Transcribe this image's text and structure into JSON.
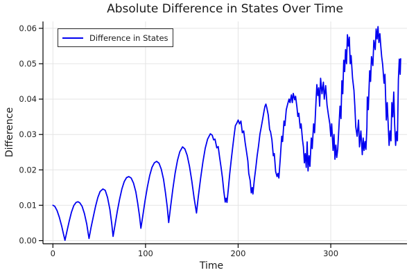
{
  "title": "Absolute Difference in States Over Time",
  "colors": {
    "line": "#0000f0",
    "grid": "#e4e4e4",
    "axis": "#000000",
    "tick_text": "#202020",
    "title_text": "#1a1a1a",
    "background": "#ffffff",
    "legend_border": "#2b2b2b"
  },
  "chart_data": {
    "type": "line",
    "title": "Absolute Difference in States Over Time",
    "xlabel": "Time",
    "ylabel": "Difference",
    "xlim": [
      -10.7,
      382.3
    ],
    "ylim": [
      -0.00088,
      0.06194
    ],
    "x_ticks": [
      0,
      100,
      200,
      300
    ],
    "x_tick_labels": [
      "0",
      "100",
      "200",
      "300"
    ],
    "y_ticks": [
      0.0,
      0.01,
      0.02,
      0.03,
      0.04,
      0.05,
      0.06
    ],
    "y_tick_labels": [
      "0.00",
      "0.01",
      "0.02",
      "0.03",
      "0.04",
      "0.05",
      "0.06"
    ],
    "grid": true,
    "legend_position": "top-left",
    "series": [
      {
        "name": "Difference in States",
        "color": "#0000f0",
        "points": [
          [
            0,
            0.01
          ],
          [
            2,
            0.0097
          ],
          [
            4.5,
            0.0085
          ],
          [
            7,
            0.0066
          ],
          [
            9.5,
            0.0041
          ],
          [
            11.3,
            0.002
          ],
          [
            13,
            0.0001
          ],
          [
            15,
            0.0024
          ],
          [
            17.5,
            0.0054
          ],
          [
            20,
            0.008
          ],
          [
            22.5,
            0.0099
          ],
          [
            25,
            0.0108
          ],
          [
            27,
            0.011
          ],
          [
            29,
            0.0107
          ],
          [
            31.5,
            0.0097
          ],
          [
            34,
            0.0077
          ],
          [
            36.5,
            0.0047
          ],
          [
            38,
            0.0022
          ],
          [
            39,
            0.0006
          ],
          [
            41,
            0.0035
          ],
          [
            43.5,
            0.0066
          ],
          [
            46,
            0.0096
          ],
          [
            48.5,
            0.0122
          ],
          [
            51,
            0.0139
          ],
          [
            54,
            0.0146
          ],
          [
            56.5,
            0.0142
          ],
          [
            59,
            0.0122
          ],
          [
            61.5,
            0.0088
          ],
          [
            63.5,
            0.0049
          ],
          [
            65,
            0.0012
          ],
          [
            67,
            0.0043
          ],
          [
            69.5,
            0.0082
          ],
          [
            72,
            0.0117
          ],
          [
            74.5,
            0.0146
          ],
          [
            77,
            0.0167
          ],
          [
            79.5,
            0.0178
          ],
          [
            82,
            0.0181
          ],
          [
            84.5,
            0.0177
          ],
          [
            87,
            0.0163
          ],
          [
            89.5,
            0.0138
          ],
          [
            91.5,
            0.0107
          ],
          [
            93.5,
            0.007
          ],
          [
            95,
            0.0035
          ],
          [
            97,
            0.0069
          ],
          [
            99.5,
            0.0113
          ],
          [
            102,
            0.0152
          ],
          [
            104.5,
            0.0184
          ],
          [
            107,
            0.0207
          ],
          [
            109.5,
            0.022
          ],
          [
            112,
            0.0224
          ],
          [
            114.5,
            0.0219
          ],
          [
            117,
            0.0202
          ],
          [
            119.5,
            0.0173
          ],
          [
            121.5,
            0.0136
          ],
          [
            123.5,
            0.0094
          ],
          [
            125,
            0.0051
          ],
          [
            127,
            0.0095
          ],
          [
            129.5,
            0.0146
          ],
          [
            132,
            0.0191
          ],
          [
            134.5,
            0.0227
          ],
          [
            137,
            0.0251
          ],
          [
            140,
            0.0265
          ],
          [
            142.5,
            0.0259
          ],
          [
            145,
            0.0241
          ],
          [
            147.5,
            0.021
          ],
          [
            150,
            0.0168
          ],
          [
            152.5,
            0.012
          ],
          [
            155,
            0.0078
          ],
          [
            157,
            0.0124
          ],
          [
            159.5,
            0.0177
          ],
          [
            162,
            0.0223
          ],
          [
            164.5,
            0.0261
          ],
          [
            167,
            0.0287
          ],
          [
            170,
            0.0302
          ],
          [
            172,
            0.0298
          ],
          [
            173.5,
            0.0285
          ],
          [
            175,
            0.0287
          ],
          [
            177,
            0.0262
          ],
          [
            178.5,
            0.0266
          ],
          [
            180,
            0.0235
          ],
          [
            181.5,
            0.0208
          ],
          [
            183,
            0.0178
          ],
          [
            184.5,
            0.014
          ],
          [
            186,
            0.0109
          ],
          [
            187,
            0.012
          ],
          [
            188,
            0.0108
          ],
          [
            189.5,
            0.0148
          ],
          [
            191,
            0.019
          ],
          [
            192.5,
            0.0228
          ],
          [
            194,
            0.0262
          ],
          [
            195.5,
            0.0295
          ],
          [
            197,
            0.0325
          ],
          [
            198.5,
            0.0332
          ],
          [
            200,
            0.0341
          ],
          [
            201.5,
            0.033
          ],
          [
            203,
            0.0338
          ],
          [
            204.5,
            0.0305
          ],
          [
            206,
            0.031
          ],
          [
            207.5,
            0.0278
          ],
          [
            209,
            0.0252
          ],
          [
            210.5,
            0.0225
          ],
          [
            211.5,
            0.019
          ],
          [
            213,
            0.017
          ],
          [
            214.2,
            0.0135
          ],
          [
            215.2,
            0.015
          ],
          [
            216,
            0.0132
          ],
          [
            217.5,
            0.0172
          ],
          [
            219,
            0.0205
          ],
          [
            220.5,
            0.024
          ],
          [
            222,
            0.0268
          ],
          [
            223.5,
            0.0301
          ],
          [
            225,
            0.0322
          ],
          [
            226.5,
            0.0344
          ],
          [
            228,
            0.0367
          ],
          [
            229,
            0.038
          ],
          [
            230,
            0.0386
          ],
          [
            231,
            0.0375
          ],
          [
            232.5,
            0.0355
          ],
          [
            234,
            0.0314
          ],
          [
            235,
            0.0308
          ],
          [
            236.5,
            0.0285
          ],
          [
            238,
            0.024
          ],
          [
            239,
            0.0246
          ],
          [
            240.5,
            0.0195
          ],
          [
            242,
            0.0181
          ],
          [
            243,
            0.019
          ],
          [
            244,
            0.0177
          ],
          [
            245.5,
            0.0234
          ],
          [
            247,
            0.0295
          ],
          [
            248,
            0.028
          ],
          [
            249.5,
            0.0338
          ],
          [
            250.5,
            0.0325
          ],
          [
            252,
            0.037
          ],
          [
            253.5,
            0.0386
          ],
          [
            255,
            0.04
          ],
          [
            256,
            0.039
          ],
          [
            257.5,
            0.0412
          ],
          [
            258.5,
            0.039
          ],
          [
            259.5,
            0.0416
          ],
          [
            261,
            0.0398
          ],
          [
            262,
            0.0408
          ],
          [
            263.5,
            0.0377
          ],
          [
            264.5,
            0.0351
          ],
          [
            265.5,
            0.036
          ],
          [
            267,
            0.0318
          ],
          [
            268,
            0.033
          ],
          [
            269.5,
            0.0285
          ],
          [
            270.5,
            0.0265
          ],
          [
            271.5,
            0.022
          ],
          [
            272.5,
            0.0246
          ],
          [
            273.5,
            0.0207
          ],
          [
            274.5,
            0.0279
          ],
          [
            275.5,
            0.0197
          ],
          [
            276.5,
            0.024
          ],
          [
            277.5,
            0.021
          ],
          [
            279,
            0.029
          ],
          [
            280,
            0.026
          ],
          [
            281.5,
            0.033
          ],
          [
            282.5,
            0.0305
          ],
          [
            284,
            0.039
          ],
          [
            285,
            0.0441
          ],
          [
            286,
            0.041
          ],
          [
            287,
            0.0432
          ],
          [
            288,
            0.038
          ],
          [
            289,
            0.0459
          ],
          [
            290.5,
            0.0415
          ],
          [
            292,
            0.0448
          ],
          [
            293,
            0.04
          ],
          [
            294.5,
            0.0438
          ],
          [
            296,
            0.0383
          ],
          [
            297.5,
            0.0355
          ],
          [
            299,
            0.033
          ],
          [
            300,
            0.0295
          ],
          [
            301,
            0.033
          ],
          [
            302.5,
            0.0255
          ],
          [
            303.5,
            0.03
          ],
          [
            304.5,
            0.023
          ],
          [
            305.5,
            0.027
          ],
          [
            306.5,
            0.0235
          ],
          [
            307.5,
            0.0258
          ],
          [
            309,
            0.033
          ],
          [
            310,
            0.038
          ],
          [
            311,
            0.0345
          ],
          [
            312,
            0.0452
          ],
          [
            313,
            0.0415
          ],
          [
            314,
            0.051
          ],
          [
            315,
            0.0478
          ],
          [
            316,
            0.054
          ],
          [
            317,
            0.05
          ],
          [
            318,
            0.0582
          ],
          [
            319,
            0.055
          ],
          [
            320,
            0.0575
          ],
          [
            321,
            0.05
          ],
          [
            322,
            0.0523
          ],
          [
            323.5,
            0.0459
          ],
          [
            325,
            0.0425
          ],
          [
            326,
            0.038
          ],
          [
            327,
            0.0322
          ],
          [
            328.5,
            0.0295
          ],
          [
            330,
            0.0341
          ],
          [
            331,
            0.0265
          ],
          [
            332.5,
            0.031
          ],
          [
            334,
            0.0243
          ],
          [
            335,
            0.029
          ],
          [
            336,
            0.0255
          ],
          [
            337,
            0.028
          ],
          [
            338,
            0.0258
          ],
          [
            339,
            0.032
          ],
          [
            339.5,
            0.0406
          ],
          [
            340.5,
            0.037
          ],
          [
            342,
            0.048
          ],
          [
            343,
            0.045
          ],
          [
            344,
            0.052
          ],
          [
            345.5,
            0.0495
          ],
          [
            346.5,
            0.0566
          ],
          [
            348,
            0.054
          ],
          [
            349,
            0.0598
          ],
          [
            350,
            0.057
          ],
          [
            351,
            0.0605
          ],
          [
            352,
            0.056
          ],
          [
            353,
            0.0585
          ],
          [
            354,
            0.055
          ],
          [
            355,
            0.052
          ],
          [
            356,
            0.0498
          ],
          [
            357.5,
            0.0445
          ],
          [
            358.5,
            0.047
          ],
          [
            360,
            0.0341
          ],
          [
            361,
            0.039
          ],
          [
            362,
            0.0328
          ],
          [
            363,
            0.0269
          ],
          [
            364,
            0.031
          ],
          [
            365,
            0.0282
          ],
          [
            366,
            0.039
          ],
          [
            367,
            0.035
          ],
          [
            368,
            0.042
          ],
          [
            369,
            0.0328
          ],
          [
            370,
            0.0269
          ],
          [
            371,
            0.0308
          ],
          [
            372,
            0.0282
          ],
          [
            373,
            0.0455
          ],
          [
            374,
            0.0513
          ],
          [
            375,
            0.047
          ],
          [
            375.5,
            0.0514
          ]
        ]
      }
    ]
  }
}
